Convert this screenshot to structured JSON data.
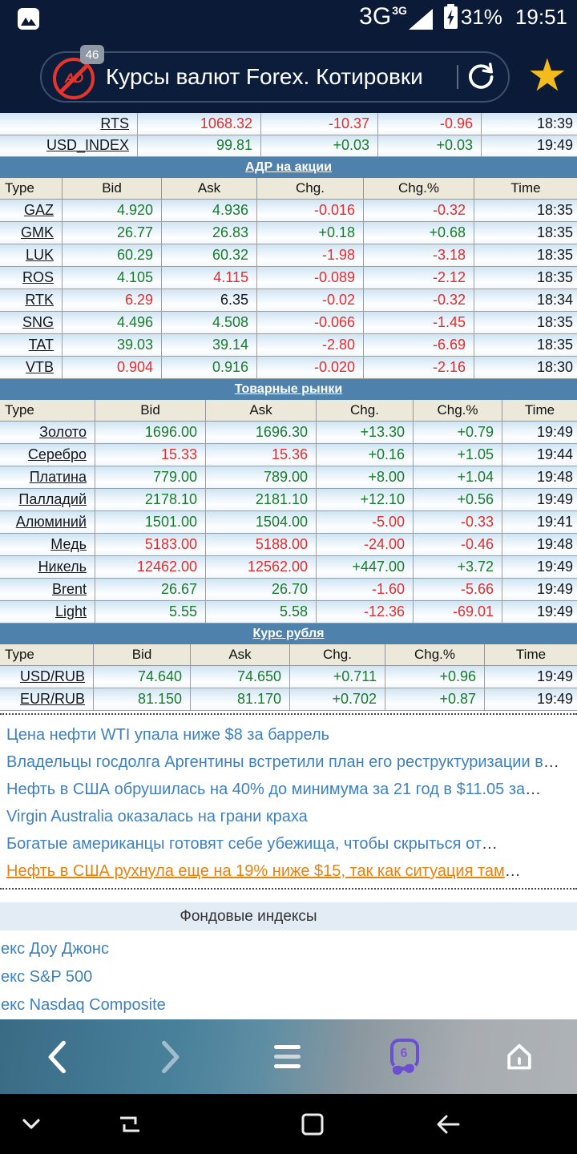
{
  "status_bar": {
    "network": "3G",
    "network_small": "3G",
    "battery_percent": "31%",
    "time": "19:51"
  },
  "address_bar": {
    "adblock_label": "AD",
    "adblock_badge": "46",
    "title": "Курсы валют Forex. Котировки"
  },
  "quotes": {
    "headers": [
      "Type",
      "Bid",
      "Ask",
      "Chg.",
      "Chg.%",
      "Time"
    ],
    "tables": [
      {
        "band": "",
        "show_headers": false,
        "widths": [
          172,
          154,
          146,
          129,
          119
        ],
        "rows": [
          {
            "cells": [
              {
                "t": "RTS",
                "c": "link"
              },
              {
                "t": "1068.32",
                "c": "down"
              },
              {
                "t": "-10.37",
                "c": "down"
              },
              {
                "t": "-0.96",
                "c": "down"
              },
              {
                "t": "18:39",
                "c": "flat"
              }
            ]
          },
          {
            "cells": [
              {
                "t": "USD_INDEX",
                "c": "link"
              },
              {
                "t": "99.81",
                "c": "up"
              },
              {
                "t": "+0.03",
                "c": "up"
              },
              {
                "t": "+0.03",
                "c": "up"
              },
              {
                "t": "19:49",
                "c": "flat"
              }
            ]
          }
        ]
      },
      {
        "band": "АДР на акции",
        "show_headers": true,
        "widths": [
          78,
          124,
          119,
          133,
          138,
          128
        ],
        "rows": [
          {
            "cells": [
              {
                "t": "GAZ",
                "c": "link"
              },
              {
                "t": "4.920",
                "c": "up"
              },
              {
                "t": "4.936",
                "c": "up"
              },
              {
                "t": "-0.016",
                "c": "down"
              },
              {
                "t": "-0.32",
                "c": "down"
              },
              {
                "t": "18:35",
                "c": "flat"
              }
            ]
          },
          {
            "cells": [
              {
                "t": "GMK",
                "c": "link"
              },
              {
                "t": "26.77",
                "c": "up"
              },
              {
                "t": "26.83",
                "c": "up"
              },
              {
                "t": "+0.18",
                "c": "up"
              },
              {
                "t": "+0.68",
                "c": "up"
              },
              {
                "t": "18:35",
                "c": "flat"
              }
            ]
          },
          {
            "cells": [
              {
                "t": "LUK",
                "c": "link"
              },
              {
                "t": "60.29",
                "c": "up"
              },
              {
                "t": "60.32",
                "c": "up"
              },
              {
                "t": "-1.98",
                "c": "down"
              },
              {
                "t": "-3.18",
                "c": "down"
              },
              {
                "t": "18:35",
                "c": "flat"
              }
            ]
          },
          {
            "cells": [
              {
                "t": "ROS",
                "c": "link"
              },
              {
                "t": "4.105",
                "c": "up"
              },
              {
                "t": "4.115",
                "c": "down"
              },
              {
                "t": "-0.089",
                "c": "down"
              },
              {
                "t": "-2.12",
                "c": "down"
              },
              {
                "t": "18:35",
                "c": "flat"
              }
            ]
          },
          {
            "cells": [
              {
                "t": "RTK",
                "c": "link"
              },
              {
                "t": "6.29",
                "c": "down"
              },
              {
                "t": "6.35",
                "c": "flat"
              },
              {
                "t": "-0.02",
                "c": "down"
              },
              {
                "t": "-0.32",
                "c": "down"
              },
              {
                "t": "18:34",
                "c": "flat"
              }
            ]
          },
          {
            "cells": [
              {
                "t": "SNG",
                "c": "link"
              },
              {
                "t": "4.496",
                "c": "up"
              },
              {
                "t": "4.508",
                "c": "up"
              },
              {
                "t": "-0.066",
                "c": "down"
              },
              {
                "t": "-1.45",
                "c": "down"
              },
              {
                "t": "18:35",
                "c": "flat"
              }
            ]
          },
          {
            "cells": [
              {
                "t": "TAT",
                "c": "link"
              },
              {
                "t": "39.03",
                "c": "up"
              },
              {
                "t": "39.14",
                "c": "up"
              },
              {
                "t": "-2.80",
                "c": "down"
              },
              {
                "t": "-6.69",
                "c": "down"
              },
              {
                "t": "18:35",
                "c": "flat"
              }
            ]
          },
          {
            "cells": [
              {
                "t": "VTB",
                "c": "link"
              },
              {
                "t": "0.904",
                "c": "down"
              },
              {
                "t": "0.916",
                "c": "up"
              },
              {
                "t": "-0.020",
                "c": "down"
              },
              {
                "t": "-2.16",
                "c": "down"
              },
              {
                "t": "18:30",
                "c": "flat"
              }
            ]
          }
        ]
      },
      {
        "band": "Товарные рынки",
        "show_headers": true,
        "widths": [
          119,
          138,
          138,
          121,
          111,
          93
        ],
        "rows": [
          {
            "cells": [
              {
                "t": "Золото",
                "c": "link"
              },
              {
                "t": "1696.00",
                "c": "up"
              },
              {
                "t": "1696.30",
                "c": "up"
              },
              {
                "t": "+13.30",
                "c": "up"
              },
              {
                "t": "+0.79",
                "c": "up"
              },
              {
                "t": "19:49",
                "c": "flat"
              }
            ]
          },
          {
            "cells": [
              {
                "t": "Серебро",
                "c": "link"
              },
              {
                "t": "15.33",
                "c": "down"
              },
              {
                "t": "15.36",
                "c": "down"
              },
              {
                "t": "+0.16",
                "c": "up"
              },
              {
                "t": "+1.05",
                "c": "up"
              },
              {
                "t": "19:44",
                "c": "flat"
              }
            ]
          },
          {
            "cells": [
              {
                "t": "Платина",
                "c": "link"
              },
              {
                "t": "779.00",
                "c": "up"
              },
              {
                "t": "789.00",
                "c": "up"
              },
              {
                "t": "+8.00",
                "c": "up"
              },
              {
                "t": "+1.04",
                "c": "up"
              },
              {
                "t": "19:48",
                "c": "flat"
              }
            ]
          },
          {
            "cells": [
              {
                "t": "Палладий",
                "c": "link"
              },
              {
                "t": "2178.10",
                "c": "up"
              },
              {
                "t": "2181.10",
                "c": "up"
              },
              {
                "t": "+12.10",
                "c": "up"
              },
              {
                "t": "+0.56",
                "c": "up"
              },
              {
                "t": "19:49",
                "c": "flat"
              }
            ]
          },
          {
            "cells": [
              {
                "t": "Алюминий",
                "c": "link"
              },
              {
                "t": "1501.00",
                "c": "up"
              },
              {
                "t": "1504.00",
                "c": "up"
              },
              {
                "t": "-5.00",
                "c": "down"
              },
              {
                "t": "-0.33",
                "c": "down"
              },
              {
                "t": "19:41",
                "c": "flat"
              }
            ]
          },
          {
            "cells": [
              {
                "t": "Медь",
                "c": "link"
              },
              {
                "t": "5183.00",
                "c": "down"
              },
              {
                "t": "5188.00",
                "c": "down"
              },
              {
                "t": "-24.00",
                "c": "down"
              },
              {
                "t": "-0.46",
                "c": "down"
              },
              {
                "t": "19:48",
                "c": "flat"
              }
            ]
          },
          {
            "cells": [
              {
                "t": "Никель",
                "c": "link"
              },
              {
                "t": "12462.00",
                "c": "down"
              },
              {
                "t": "12562.00",
                "c": "down"
              },
              {
                "t": "+447.00",
                "c": "up"
              },
              {
                "t": "+3.72",
                "c": "up"
              },
              {
                "t": "19:49",
                "c": "flat"
              }
            ]
          },
          {
            "cells": [
              {
                "t": "Brent",
                "c": "link"
              },
              {
                "t": "26.67",
                "c": "up"
              },
              {
                "t": "26.70",
                "c": "up"
              },
              {
                "t": "-1.60",
                "c": "down"
              },
              {
                "t": "-5.66",
                "c": "down"
              },
              {
                "t": "19:49",
                "c": "flat"
              }
            ]
          },
          {
            "cells": [
              {
                "t": "Light",
                "c": "link"
              },
              {
                "t": "5.55",
                "c": "up"
              },
              {
                "t": "5.58",
                "c": "up"
              },
              {
                "t": "-12.36",
                "c": "down"
              },
              {
                "t": "-69.01",
                "c": "down"
              },
              {
                "t": "19:49",
                "c": "flat"
              }
            ]
          }
        ]
      },
      {
        "band": "Курс рубля",
        "show_headers": true,
        "widths": [
          117,
          121,
          124,
          119,
          124,
          115
        ],
        "rows": [
          {
            "cells": [
              {
                "t": "USD/RUB",
                "c": "link"
              },
              {
                "t": "74.640",
                "c": "up"
              },
              {
                "t": "74.650",
                "c": "up"
              },
              {
                "t": "+0.711",
                "c": "up"
              },
              {
                "t": "+0.96",
                "c": "up"
              },
              {
                "t": "19:49",
                "c": "flat"
              }
            ]
          },
          {
            "cells": [
              {
                "t": "EUR/RUB",
                "c": "link"
              },
              {
                "t": "81.150",
                "c": "up"
              },
              {
                "t": "81.170",
                "c": "up"
              },
              {
                "t": "+0.702",
                "c": "up"
              },
              {
                "t": "+0.87",
                "c": "up"
              },
              {
                "t": "19:49",
                "c": "flat"
              }
            ]
          }
        ]
      }
    ]
  },
  "news": {
    "items": [
      {
        "text": "Цена нефти WTI упала ниже $8 за баррель",
        "trail": "",
        "visited": false
      },
      {
        "text": "Владельцы госдолга Аргентины встретили план его реструктуризации в",
        "trail": "…",
        "visited": false
      },
      {
        "text": "Нефть в США обрушилась на 40% до минимума за 21 год в $11.05 за",
        "trail": "…",
        "visited": false
      },
      {
        "text": "Virgin Australia оказалась на грани краха",
        "trail": "",
        "visited": false
      },
      {
        "text": "Богатые американцы готовят себе убежища, чтобы скрыться от",
        "trail": "…",
        "visited": false
      },
      {
        "text": "Нефть в США рухнула еще на 19% ниже $15, так как ситуация там",
        "trail": "…",
        "visited": true
      }
    ]
  },
  "stock_indices": {
    "band_title": "Фондовые индексы",
    "links": [
      "екс Доу Джонс",
      "екс S&P 500",
      "екс Nasdaq Composite"
    ]
  },
  "browser_toolbar": {
    "tab_count": "6"
  },
  "colors": {
    "up": "#197b2d",
    "down": "#e12d2d",
    "band_blue": "#4f81ad",
    "header_cream": "#ece9da",
    "link_blue": "#3e81c0",
    "visited_orange": "#e8820c",
    "accent_purple": "#6b4fd1",
    "star_yellow": "#f3bb1b"
  }
}
